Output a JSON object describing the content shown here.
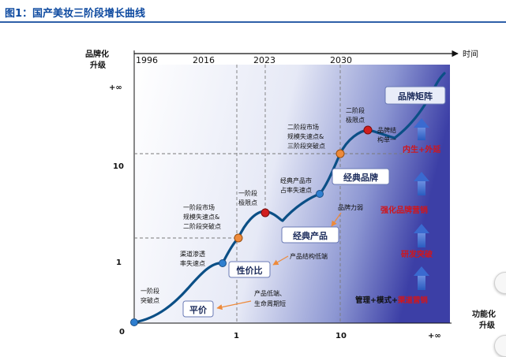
{
  "figure_title": "图1：国产美妆三阶段增长曲线",
  "axes": {
    "y_label_line1": "品牌化",
    "y_label_line2": "升级",
    "x_label_line1": "功能化",
    "x_label_line2": "升级",
    "time_label": "时间",
    "years": [
      "1996",
      "2016",
      "2023",
      "2030"
    ],
    "y_ticks": [
      "+∞",
      "10",
      "1",
      "0"
    ],
    "x_ticks": [
      "1",
      "10",
      "+∞"
    ]
  },
  "stage_boxes": {
    "s1": "平价",
    "s2": "性价比",
    "s3": "经典产品",
    "s4": "经典品牌",
    "s5": "品牌矩阵"
  },
  "annotations": {
    "a1_l1": "一阶段",
    "a1_l2": "突破点",
    "a2_l1": "渠道渗透",
    "a2_l2": "率失速点",
    "a3_l1": "一阶段市场",
    "a3_l2": "规模失速点&",
    "a3_l3": "二阶段突破点",
    "a4_l1": "一阶段",
    "a4_l2": "极限点",
    "a5_l1": "经典产品市",
    "a5_l2": "占率失速点",
    "a6_l1": "二阶段市场",
    "a6_l2": "规模失速点&",
    "a6_l3": "三阶段突破点",
    "a7_l1": "二阶段",
    "a7_l2": "极限点",
    "a8_l1": "品牌结",
    "a8_l2": "构单一",
    "n1_l1": "产品低端、",
    "n1_l2": "生命周期短",
    "n2": "产品结构低端",
    "n3": "品牌力弱"
  },
  "strategies": {
    "s5_line": "内生+外延",
    "s4_line": "强化品牌营销",
    "s3_line": "研发突破",
    "s2_prefix": "管理+模式+",
    "s2_red": "渠道营销"
  }
}
